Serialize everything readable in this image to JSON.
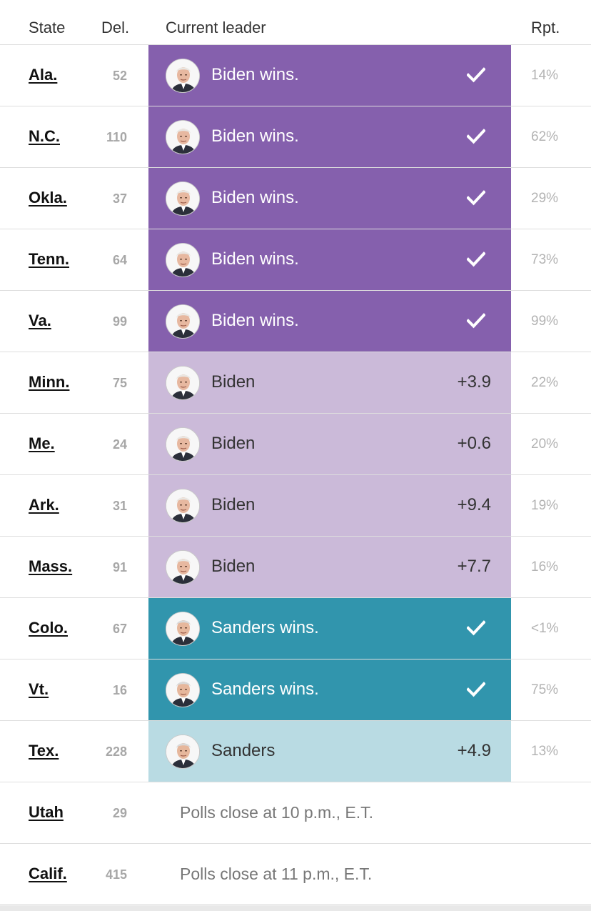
{
  "header": {
    "state": "State",
    "delegates": "Del.",
    "leader": "Current leader",
    "reporting": "Rpt."
  },
  "colors": {
    "biden_win": "#8560ad",
    "biden_lead": "#cbbad9",
    "sanders_win": "#3195ad",
    "sanders_lead": "#b9dbe3"
  },
  "rows": [
    {
      "state": "Ala.",
      "del": "52",
      "status": "biden-win",
      "candidate": "biden",
      "leader": "Biden wins.",
      "margin": "",
      "rpt": "14%"
    },
    {
      "state": "N.C.",
      "del": "110",
      "status": "biden-win",
      "candidate": "biden",
      "leader": "Biden wins.",
      "margin": "",
      "rpt": "62%"
    },
    {
      "state": "Okla.",
      "del": "37",
      "status": "biden-win",
      "candidate": "biden",
      "leader": "Biden wins.",
      "margin": "",
      "rpt": "29%"
    },
    {
      "state": "Tenn.",
      "del": "64",
      "status": "biden-win",
      "candidate": "biden",
      "leader": "Biden wins.",
      "margin": "",
      "rpt": "73%"
    },
    {
      "state": "Va.",
      "del": "99",
      "status": "biden-win",
      "candidate": "biden",
      "leader": "Biden wins.",
      "margin": "",
      "rpt": "99%"
    },
    {
      "state": "Minn.",
      "del": "75",
      "status": "biden-lead",
      "candidate": "biden",
      "leader": "Biden",
      "margin": "+3.9",
      "rpt": "22%"
    },
    {
      "state": "Me.",
      "del": "24",
      "status": "biden-lead",
      "candidate": "biden",
      "leader": "Biden",
      "margin": "+0.6",
      "rpt": "20%"
    },
    {
      "state": "Ark.",
      "del": "31",
      "status": "biden-lead",
      "candidate": "biden",
      "leader": "Biden",
      "margin": "+9.4",
      "rpt": "19%"
    },
    {
      "state": "Mass.",
      "del": "91",
      "status": "biden-lead",
      "candidate": "biden",
      "leader": "Biden",
      "margin": "+7.7",
      "rpt": "16%"
    },
    {
      "state": "Colo.",
      "del": "67",
      "status": "sanders-win",
      "candidate": "sanders",
      "leader": "Sanders wins.",
      "margin": "",
      "rpt": "<1%"
    },
    {
      "state": "Vt.",
      "del": "16",
      "status": "sanders-win",
      "candidate": "sanders",
      "leader": "Sanders wins.",
      "margin": "",
      "rpt": "75%"
    },
    {
      "state": "Tex.",
      "del": "228",
      "status": "sanders-lead",
      "candidate": "sanders",
      "leader": "Sanders",
      "margin": "+4.9",
      "rpt": "13%"
    },
    {
      "state": "Utah",
      "del": "29",
      "status": "none",
      "candidate": "",
      "leader": "",
      "polls": "Polls close at 10 p.m., E.T.",
      "margin": "",
      "rpt": ""
    },
    {
      "state": "Calif.",
      "del": "415",
      "status": "none",
      "candidate": "",
      "leader": "",
      "polls": "Polls close at 11 p.m., E.T.",
      "margin": "",
      "rpt": ""
    }
  ]
}
